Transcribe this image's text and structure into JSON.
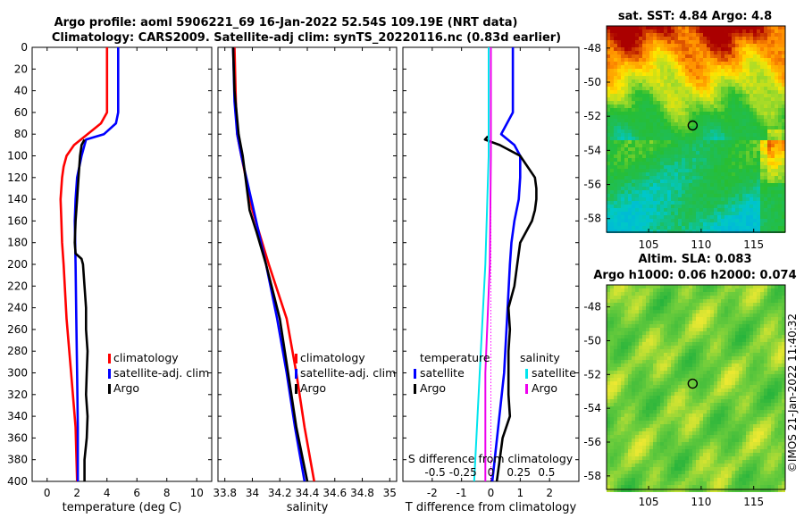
{
  "title_line1": "Argo profile: aoml 5906221_69 16-Jan-2022 52.54S 109.19E (NRT data)",
  "title_line2": "Climatology: CARS2009. Satellite-adj clim: synTS_20220116.nc (0.83d earlier)",
  "credit": "©IMOS 21-Jan-2022 11:40:32",
  "colors": {
    "climatology": "#ff0000",
    "satellite": "#0000ff",
    "argo": "#000000",
    "sat_salinity": "#00e5ee",
    "argo_salinity": "#ee00ee"
  },
  "chart_data": [
    {
      "id": "temperature",
      "type": "line",
      "xlabel": "temperature (deg C)",
      "xlim": [
        -1,
        11
      ],
      "xticks": [
        "0",
        "2",
        "4",
        "6",
        "8",
        "10"
      ],
      "xtick_values": [
        0,
        2,
        4,
        6,
        8,
        10
      ],
      "ylim": [
        0,
        400
      ],
      "yticks": [
        "0",
        "20",
        "40",
        "60",
        "80",
        "100",
        "120",
        "140",
        "160",
        "180",
        "200",
        "220",
        "240",
        "260",
        "280",
        "300",
        "320",
        "340",
        "360",
        "380",
        "400"
      ],
      "legend": [
        "climatology",
        "satellite-adj. clim",
        "Argo"
      ],
      "series": [
        {
          "name": "climatology",
          "color": "#ff0000",
          "depth": [
            0,
            20,
            40,
            60,
            70,
            80,
            90,
            100,
            110,
            120,
            140,
            160,
            180,
            200,
            250,
            300,
            350,
            400
          ],
          "values": [
            4.0,
            4.0,
            4.0,
            4.0,
            3.6,
            2.7,
            1.8,
            1.3,
            1.1,
            1.0,
            0.9,
            0.95,
            1.0,
            1.1,
            1.3,
            1.6,
            1.9,
            2.0
          ]
        },
        {
          "name": "satellite-adj. clim",
          "color": "#0000ff",
          "depth": [
            0,
            20,
            40,
            60,
            70,
            80,
            85,
            90,
            100,
            120,
            140,
            160,
            200,
            250,
            300,
            350,
            400
          ],
          "values": [
            4.75,
            4.75,
            4.75,
            4.75,
            4.6,
            3.8,
            2.6,
            2.5,
            2.3,
            2.0,
            1.9,
            1.85,
            1.9,
            1.95,
            2.0,
            2.05,
            2.05
          ]
        },
        {
          "name": "Argo",
          "color": "#000000",
          "depth": [
            0,
            80,
            85,
            90,
            100,
            120,
            140,
            160,
            180,
            190,
            195,
            200,
            220,
            240,
            260,
            280,
            300,
            320,
            340,
            360,
            380,
            400
          ],
          "values": [
            null,
            null,
            2.5,
            2.3,
            2.2,
            2.1,
            2.0,
            1.9,
            1.85,
            1.9,
            2.3,
            2.4,
            2.5,
            2.6,
            2.6,
            2.7,
            2.65,
            2.6,
            2.7,
            2.65,
            2.5,
            2.5
          ]
        }
      ]
    },
    {
      "id": "salinity",
      "type": "line",
      "xlabel": "salinity",
      "xlim": [
        33.75,
        35.05
      ],
      "xticks": [
        "33.8",
        "34",
        "34.2",
        "34.4",
        "34.6",
        "34.8",
        "35"
      ],
      "xtick_values": [
        33.8,
        34.0,
        34.2,
        34.4,
        34.6,
        34.8,
        35.0
      ],
      "ylim": [
        0,
        400
      ],
      "legend": [
        "climatology",
        "satellite-adj. clim",
        "Argo"
      ],
      "series": [
        {
          "name": "climatology",
          "color": "#ff0000",
          "depth": [
            0,
            50,
            80,
            100,
            150,
            200,
            250,
            300,
            350,
            400
          ],
          "values": [
            33.87,
            33.88,
            33.89,
            33.92,
            34.0,
            34.12,
            34.25,
            34.32,
            34.38,
            34.45
          ]
        },
        {
          "name": "satellite-adj. clim",
          "color": "#0000ff",
          "depth": [
            0,
            50,
            80,
            100,
            150,
            200,
            250,
            300,
            350,
            400
          ],
          "values": [
            33.86,
            33.87,
            33.89,
            33.92,
            34.01,
            34.1,
            34.18,
            34.25,
            34.31,
            34.38
          ]
        },
        {
          "name": "Argo",
          "color": "#000000",
          "depth": [
            0,
            40,
            80,
            100,
            120,
            150,
            170,
            200,
            220,
            250,
            300,
            350,
            400
          ],
          "values": [
            33.86,
            33.87,
            33.9,
            33.93,
            33.95,
            33.98,
            34.03,
            34.1,
            34.14,
            34.2,
            34.26,
            34.32,
            34.4
          ]
        }
      ]
    },
    {
      "id": "difference",
      "type": "line",
      "xlabel": "T difference from climatology",
      "xlabel_top": "S difference from climatology",
      "xlim": [
        -3,
        3
      ],
      "xticks": [
        "-2",
        "-1",
        "0",
        "1",
        "2"
      ],
      "xtick_values": [
        -2,
        -1,
        0,
        1,
        2
      ],
      "sticks": [
        "-0.5",
        "-0.25",
        "0",
        "0.25",
        "0.5"
      ],
      "stick_values": [
        -0.5,
        -0.25,
        0,
        0.25,
        0.5
      ],
      "ylim": [
        0,
        400
      ],
      "legend_left_title": "temperature",
      "legend_right_title": "salinity",
      "legend_left": [
        "satellite",
        "Argo"
      ],
      "legend_right": [
        "satellite",
        "Argo"
      ],
      "series": [
        {
          "name": "T satellite",
          "color": "#0000ff",
          "depth": [
            0,
            40,
            60,
            80,
            90,
            100,
            120,
            140,
            160,
            180,
            200,
            250,
            300,
            350,
            400
          ],
          "values": [
            0.75,
            0.75,
            0.75,
            0.35,
            0.8,
            1.0,
            1.0,
            0.95,
            0.8,
            0.7,
            0.65,
            0.55,
            0.45,
            0.25,
            0.05
          ]
        },
        {
          "name": "T Argo",
          "color": "#000000",
          "depth": [
            80,
            82,
            85,
            90,
            100,
            120,
            130,
            140,
            150,
            160,
            180,
            200,
            220,
            240,
            260,
            280,
            300,
            320,
            340,
            360,
            380,
            400
          ],
          "values": [
            null,
            -0.1,
            -0.2,
            0.3,
            1.0,
            1.5,
            1.55,
            1.55,
            1.5,
            1.4,
            1.0,
            0.9,
            0.8,
            0.6,
            0.65,
            0.6,
            0.6,
            0.6,
            0.65,
            0.4,
            0.3,
            0.2
          ]
        },
        {
          "name": "S satellite",
          "color": "#00e5ee",
          "depth": [
            0,
            100,
            200,
            300,
            400
          ],
          "values": [
            -0.02,
            -0.02,
            -0.05,
            -0.1,
            -0.15
          ]
        },
        {
          "name": "S Argo",
          "color": "#ee00ee",
          "depth": [
            0,
            100,
            200,
            250,
            300,
            400
          ],
          "values": [
            0.0,
            0.0,
            -0.01,
            -0.03,
            -0.05,
            -0.05
          ]
        }
      ]
    }
  ],
  "maps": [
    {
      "id": "sst_map",
      "title": "sat. SST: 4.84 Argo: 4.8",
      "xticks": [
        "105",
        "110",
        "115"
      ],
      "xtick_values": [
        105,
        110,
        115
      ],
      "yticks": [
        "-48",
        "-50",
        "-52",
        "-54",
        "-56",
        "-58"
      ],
      "ytick_values": [
        -48,
        -50,
        -52,
        -54,
        -56,
        -58
      ],
      "xlim": [
        101,
        118
      ],
      "ylim": [
        -58.8,
        -46.7
      ],
      "marker": {
        "lon": 109.19,
        "lat": -52.54
      },
      "palette": "sst"
    },
    {
      "id": "sla_map",
      "title_line1": "Altim. SLA: 0.083",
      "title_line2": "Argo h1000: 0.06 h2000: 0.074",
      "xticks": [
        "105",
        "110",
        "115"
      ],
      "xtick_values": [
        105,
        110,
        115
      ],
      "yticks": [
        "-48",
        "-50",
        "-52",
        "-54",
        "-56",
        "-58"
      ],
      "ytick_values": [
        -48,
        -50,
        -52,
        -54,
        -56,
        -58
      ],
      "xlim": [
        101,
        118
      ],
      "ylim": [
        -58.8,
        -46.7
      ],
      "marker": {
        "lon": 109.19,
        "lat": -52.54
      },
      "palette": "sla"
    }
  ]
}
